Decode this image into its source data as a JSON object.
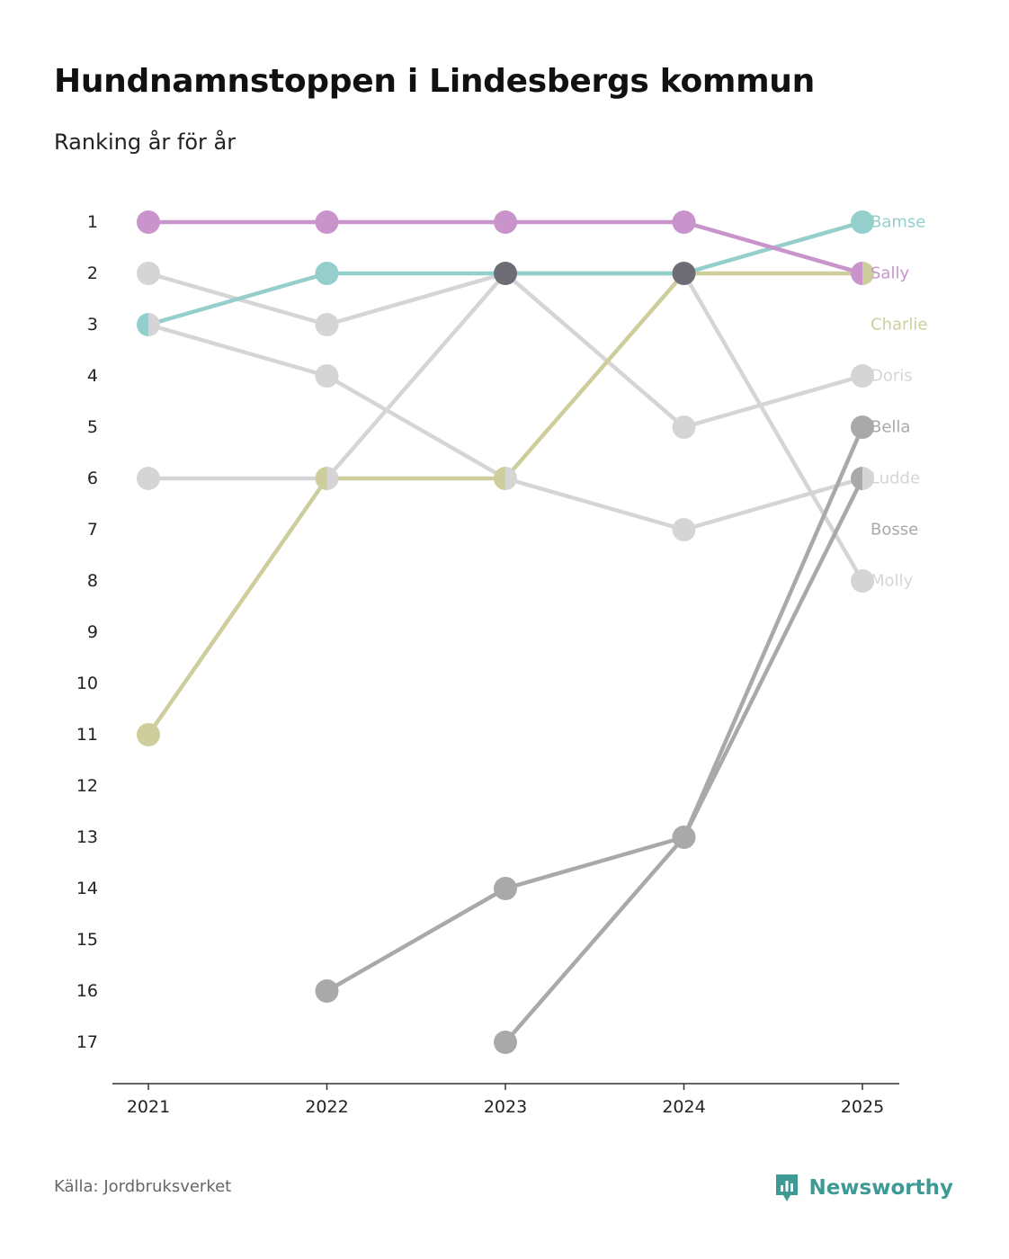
{
  "title": "Hundnamnstoppen i Lindesbergs kommun",
  "subtitle": "Ranking år för år",
  "source": "Källa: Jordbruksverket",
  "brand": "Newsworthy",
  "colors": {
    "brand": "#3e9a94",
    "axis": "#333333"
  },
  "chart_data": {
    "type": "line",
    "x": [
      "2021",
      "2022",
      "2023",
      "2024",
      "2025"
    ],
    "ylim": [
      1,
      17
    ],
    "yticks": [
      "1",
      "2",
      "3",
      "4",
      "5",
      "6",
      "7",
      "8",
      "9",
      "10",
      "11",
      "12",
      "13",
      "14",
      "15",
      "16",
      "17"
    ],
    "y_inverted": true,
    "series": [
      {
        "name": "Molly",
        "color": "#d5d5d5",
        "values": [
          2,
          3,
          2,
          2,
          8
        ]
      },
      {
        "name": "Doris",
        "color": "#d5d5d5",
        "values": [
          6,
          6,
          2,
          5,
          4
        ]
      },
      {
        "name": "Ludde",
        "color": "#d5d5d5",
        "values": [
          3,
          4,
          6,
          7,
          6
        ]
      },
      {
        "name": "Bosse",
        "color": "#a9a9a9",
        "values": [
          null,
          null,
          17,
          13,
          6
        ]
      },
      {
        "name": "Bella",
        "color": "#a9a9a9",
        "values": [
          null,
          16,
          14,
          13,
          5
        ]
      },
      {
        "name": "Charlie",
        "color": "#cdce9b",
        "values": [
          11,
          6,
          6,
          2,
          2
        ]
      },
      {
        "name": "Bamse",
        "color": "#94cfcc",
        "values": [
          3,
          2,
          2,
          2,
          1
        ]
      },
      {
        "name": "Sally",
        "color": "#c994cc",
        "values": [
          1,
          1,
          1,
          1,
          2
        ]
      }
    ],
    "end_labels": [
      {
        "name": "Bamse",
        "rank": 1,
        "color": "#94cfcc"
      },
      {
        "name": "Sally",
        "rank": 2,
        "color": "#c994cc"
      },
      {
        "name": "Charlie",
        "rank": 3,
        "color": "#cdce9b"
      },
      {
        "name": "Doris",
        "rank": 4,
        "color": "#d5d5d5"
      },
      {
        "name": "Bella",
        "rank": 5,
        "color": "#a9a9a9"
      },
      {
        "name": "Ludde",
        "rank": 6,
        "color": "#d5d5d5"
      },
      {
        "name": "Bosse",
        "rank": 7,
        "color": "#a9a9a9"
      },
      {
        "name": "Molly",
        "rank": 8,
        "color": "#d5d5d5"
      }
    ],
    "overlap_color": "#6e6d75"
  }
}
